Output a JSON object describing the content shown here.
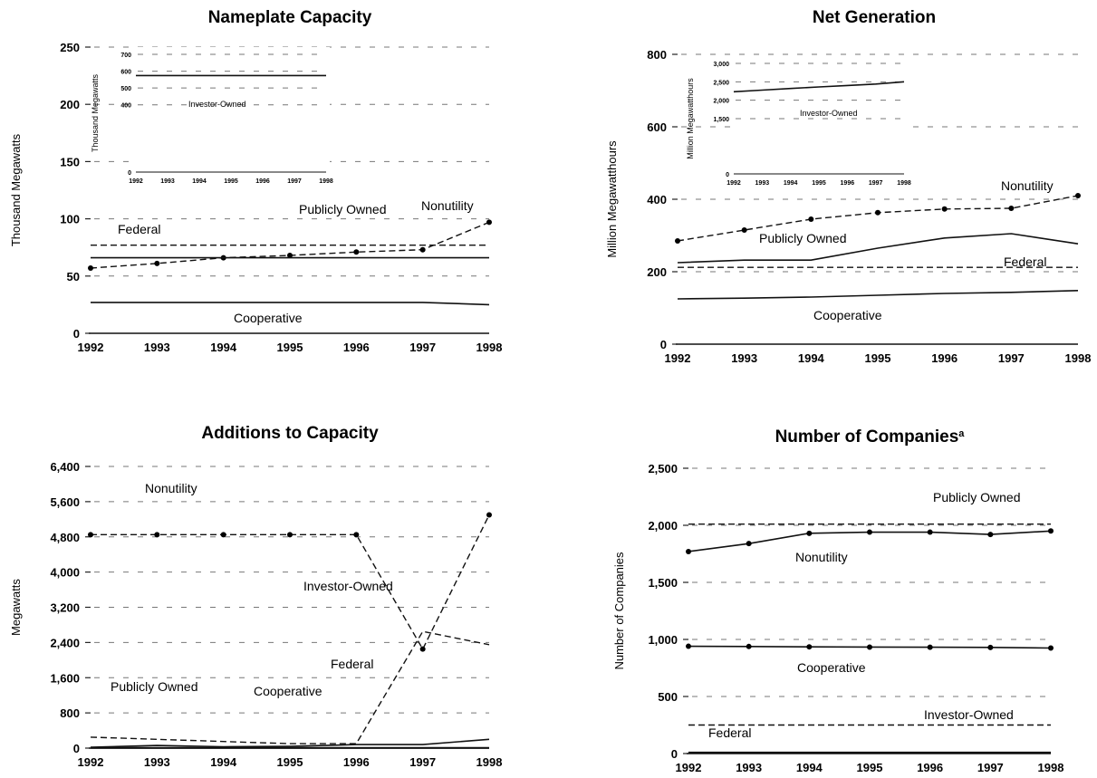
{
  "chart_data": [
    {
      "id": "nameplate",
      "type": "line",
      "title": "Nameplate Capacity",
      "xlabel": "",
      "ylabel": "Thousand Megawatts",
      "categories": [
        "1992",
        "1993",
        "1994",
        "1995",
        "1996",
        "1997",
        "1998"
      ],
      "ylim": [
        0,
        250
      ],
      "yticks": [
        0,
        50,
        100,
        150,
        200,
        250
      ],
      "ytick_labels": [
        "0",
        "50",
        "100",
        "150",
        "200",
        "250"
      ],
      "grid": true,
      "series": [
        {
          "name": "Nonutility",
          "values": [
            57,
            61,
            66,
            68,
            71,
            73,
            97
          ],
          "style": "dash",
          "markers": true
        },
        {
          "name": "Publicly Owned",
          "values": [
            77,
            77,
            77,
            77,
            77,
            77,
            77
          ],
          "style": "dash",
          "markers": false
        },
        {
          "name": "Federal",
          "values": [
            66,
            66,
            66,
            66,
            66,
            66,
            66
          ],
          "style": "solid",
          "markers": false
        },
        {
          "name": "Cooperative",
          "values": [
            27,
            27,
            27,
            27,
            27,
            27,
            25
          ],
          "style": "solid",
          "markers": false
        }
      ],
      "inset": {
        "series_name": "Investor-Owned",
        "ylabel": "Thousand Megawatts",
        "categories": [
          "1992",
          "1993",
          "1994",
          "1995",
          "1996",
          "1997",
          "1998"
        ],
        "tick_labels": [
          "1992",
          "1993",
          "1994",
          "1995",
          "1996",
          "1997",
          "1998"
        ],
        "ylim": [
          0,
          700
        ],
        "yticks": [
          0,
          400,
          500,
          600,
          700
        ],
        "ytick_labels": [
          "0",
          "400",
          "500",
          "600",
          "700"
        ],
        "values": [
          574,
          574,
          574,
          574,
          574,
          574,
          574
        ]
      }
    },
    {
      "id": "netgen",
      "type": "line",
      "title": "Net Generation",
      "xlabel": "",
      "ylabel": "Million Megawatthours",
      "categories": [
        "1992",
        "1993",
        "1994",
        "1995",
        "1996",
        "1997",
        "1998"
      ],
      "ylim": [
        0,
        800
      ],
      "yticks": [
        0,
        200,
        400,
        600,
        800
      ],
      "ytick_labels": [
        "0",
        "200",
        "400",
        "600",
        "800"
      ],
      "grid": true,
      "series": [
        {
          "name": "Nonutility",
          "values": [
            285,
            315,
            345,
            363,
            373,
            375,
            410
          ],
          "style": "dash",
          "markers": true
        },
        {
          "name": "Publicly Owned",
          "values": [
            225,
            232,
            232,
            265,
            293,
            305,
            277
          ],
          "style": "solid",
          "markers": false
        },
        {
          "name": "Federal",
          "values": [
            212,
            212,
            212,
            212,
            212,
            212,
            212
          ],
          "style": "dash",
          "markers": false
        },
        {
          "name": "Cooperative",
          "values": [
            125,
            127,
            130,
            135,
            140,
            143,
            148
          ],
          "style": "solid",
          "markers": false
        }
      ],
      "inset": {
        "series_name": "Investor-Owned",
        "ylabel": "Million Megawatthours",
        "categories": [
          "1992",
          "1993",
          "1994",
          "1995",
          "1996",
          "1997",
          "1998"
        ],
        "tick_labels": [
          "1992",
          "1993",
          "1994",
          "1995",
          "1996",
          "1997",
          "1998"
        ],
        "ylim": [
          0,
          3000
        ],
        "yticks": [
          0,
          1500,
          2000,
          2500,
          3000
        ],
        "ytick_labels": [
          "0",
          "1,500",
          "2,000",
          "2,500",
          "3,000"
        ],
        "values": [
          2230,
          2275,
          2320,
          2360,
          2400,
          2440,
          2500
        ]
      }
    },
    {
      "id": "additions",
      "type": "line",
      "title": "Additions to Capacity",
      "xlabel": "",
      "ylabel": "Megawatts",
      "categories": [
        "1992",
        "1993",
        "1994",
        "1995",
        "1996",
        "1997",
        "1998"
      ],
      "ylim": [
        0,
        6400
      ],
      "yticks": [
        0,
        800,
        1600,
        2400,
        3200,
        4000,
        4800,
        5600,
        6400
      ],
      "ytick_labels": [
        "0",
        "800",
        "1,600",
        "2,400",
        "3,200",
        "4,000",
        "4,800",
        "5,600",
        "6,400"
      ],
      "grid": true,
      "series": [
        {
          "name": "Nonutility",
          "values": [
            4850,
            4850,
            4850,
            4850,
            4850,
            2250,
            5300
          ],
          "style": "dash",
          "markers": true
        },
        {
          "name": "Investor-Owned",
          "values": [
            250,
            200,
            150,
            100,
            100,
            2650,
            2350
          ],
          "style": "dash",
          "markers": false
        },
        {
          "name": "Publicly Owned",
          "values": [
            20,
            60,
            30,
            40,
            80,
            80,
            200
          ],
          "style": "solid",
          "markers": false
        },
        {
          "name": "Federal",
          "values": [
            10,
            10,
            10,
            10,
            10,
            10,
            10
          ],
          "style": "solid",
          "markers": false
        },
        {
          "name": "Cooperative",
          "values": [
            0,
            0,
            0,
            0,
            0,
            0,
            0
          ],
          "style": "solid",
          "markers": false
        }
      ]
    },
    {
      "id": "companies",
      "type": "line",
      "title": "Number of Companies",
      "title_mark": "a",
      "xlabel": "",
      "ylabel": "Number of Companies",
      "categories": [
        "1992",
        "1993",
        "1994",
        "1995",
        "1996",
        "1997",
        "1998"
      ],
      "ylim": [
        0,
        2500
      ],
      "yticks": [
        0,
        500,
        1000,
        1500,
        2000,
        2500
      ],
      "ytick_labels": [
        "0",
        "500",
        "1,000",
        "1,500",
        "2,000",
        "2,500"
      ],
      "grid": true,
      "series": [
        {
          "name": "Publicly Owned",
          "values": [
            2010,
            2010,
            2010,
            2010,
            2010,
            2010,
            2010
          ],
          "style": "dash",
          "markers": false
        },
        {
          "name": "Nonutility",
          "values": [
            1770,
            1840,
            1930,
            1940,
            1940,
            1920,
            1950
          ],
          "style": "solid",
          "markers": true
        },
        {
          "name": "Cooperative",
          "values": [
            940,
            938,
            935,
            933,
            932,
            930,
            925
          ],
          "style": "solid",
          "markers": true
        },
        {
          "name": "Investor-Owned",
          "values": [
            250,
            250,
            250,
            250,
            250,
            250,
            250
          ],
          "style": "dash",
          "markers": false
        },
        {
          "name": "Federal",
          "values": [
            10,
            10,
            10,
            10,
            10,
            10,
            10
          ],
          "style": "solid",
          "markers": false
        }
      ]
    }
  ]
}
